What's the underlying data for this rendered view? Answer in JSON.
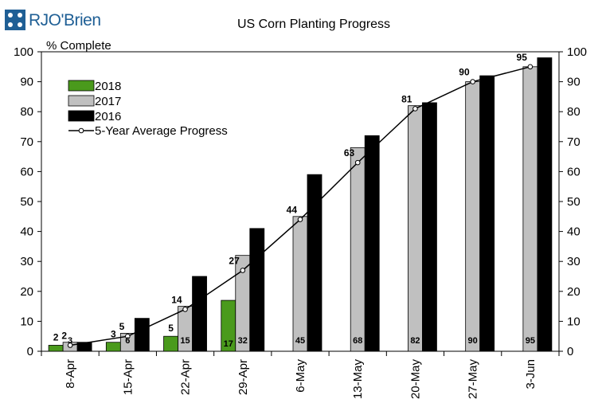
{
  "brand": {
    "logo_text": "RJO'Brien",
    "logo_color": "#1f5f95"
  },
  "chart_data": {
    "type": "bar",
    "title": "US Corn Planting Progress",
    "ylabel": "% Complete",
    "xlabel": "",
    "ylim": [
      0,
      100
    ],
    "y_ticks": [
      "0",
      "10",
      "20",
      "30",
      "40",
      "50",
      "60",
      "70",
      "80",
      "90",
      "100"
    ],
    "categories": [
      "8-Apr",
      "15-Apr",
      "22-Apr",
      "29-Apr",
      "6-May",
      "13-May",
      "20-May",
      "27-May",
      "3-Jun"
    ],
    "series": [
      {
        "name": "2018",
        "color": "#4a9a1c",
        "values": [
          2,
          3,
          5,
          17,
          null,
          null,
          null,
          null,
          null
        ],
        "labels": [
          "2",
          "3",
          "5",
          "17",
          "",
          "",
          "",
          "",
          ""
        ]
      },
      {
        "name": "2017",
        "color": "#c0c0c0",
        "values": [
          3,
          6,
          15,
          32,
          45,
          68,
          82,
          90,
          95
        ],
        "labels": [
          "3",
          "6",
          "15",
          "32",
          "45",
          "68",
          "82",
          "90",
          "95"
        ]
      },
      {
        "name": "2016",
        "color": "#000000",
        "values": [
          3,
          11,
          25,
          41,
          59,
          72,
          83,
          92,
          98
        ]
      }
    ],
    "line": {
      "name": "5-Year Average Progress",
      "color": "#000000",
      "values": [
        2,
        5,
        14,
        27,
        44,
        63,
        81,
        90,
        95
      ],
      "labels": [
        "2",
        "5",
        "14",
        "27",
        "44",
        "63",
        "81",
        "90",
        "95"
      ]
    },
    "legend_position": "top-left",
    "grid": false
  }
}
